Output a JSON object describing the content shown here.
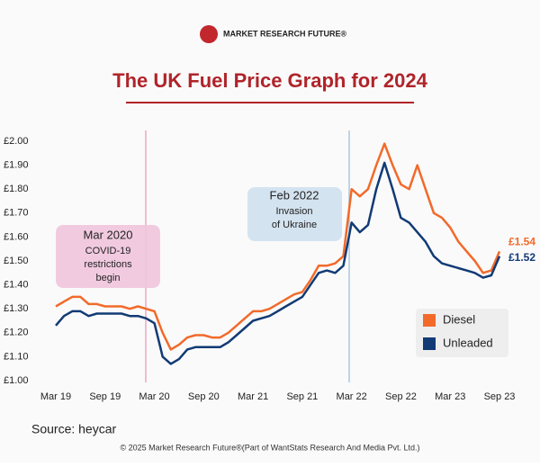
{
  "brand": "MARKET RESEARCH FUTURE®",
  "chart_data": {
    "type": "line",
    "title": "The UK Fuel Price Graph for 2024",
    "categories": [
      "Mar 19",
      null,
      null,
      null,
      null,
      null,
      "Sep 19",
      null,
      null,
      null,
      null,
      null,
      "Mar 20",
      null,
      null,
      null,
      null,
      null,
      "Sep 20",
      null,
      null,
      null,
      null,
      null,
      "Mar 21",
      null,
      null,
      null,
      null,
      null,
      "Sep 21",
      null,
      null,
      null,
      null,
      null,
      "Mar 22",
      null,
      null,
      null,
      null,
      null,
      "Sep 22",
      null,
      null,
      null,
      null,
      null,
      "Mar 23",
      null,
      null,
      null,
      null,
      null,
      "Sep 23"
    ],
    "series": [
      {
        "name": "Diesel",
        "color": "#f26a2a",
        "end_label": "£1.54",
        "values": [
          1.31,
          1.33,
          1.35,
          1.35,
          1.32,
          1.32,
          1.31,
          1.31,
          1.31,
          1.3,
          1.31,
          1.3,
          1.29,
          1.2,
          1.13,
          1.15,
          1.18,
          1.19,
          1.19,
          1.18,
          1.18,
          1.2,
          1.23,
          1.26,
          1.29,
          1.29,
          1.3,
          1.32,
          1.34,
          1.36,
          1.37,
          1.42,
          1.48,
          1.48,
          1.49,
          1.52,
          1.8,
          1.77,
          1.8,
          1.9,
          1.99,
          1.9,
          1.82,
          1.8,
          1.9,
          1.8,
          1.7,
          1.68,
          1.64,
          1.58,
          1.54,
          1.5,
          1.45,
          1.46,
          1.54
        ]
      },
      {
        "name": "Unleaded",
        "color": "#123a75",
        "end_label": "£1.52",
        "values": [
          1.23,
          1.27,
          1.29,
          1.29,
          1.27,
          1.28,
          1.28,
          1.28,
          1.28,
          1.27,
          1.27,
          1.26,
          1.24,
          1.1,
          1.07,
          1.09,
          1.13,
          1.14,
          1.14,
          1.14,
          1.14,
          1.16,
          1.19,
          1.22,
          1.25,
          1.26,
          1.27,
          1.29,
          1.31,
          1.33,
          1.35,
          1.4,
          1.45,
          1.46,
          1.45,
          1.48,
          1.66,
          1.62,
          1.65,
          1.8,
          1.91,
          1.8,
          1.68,
          1.66,
          1.62,
          1.58,
          1.52,
          1.49,
          1.48,
          1.47,
          1.46,
          1.45,
          1.43,
          1.44,
          1.52
        ]
      }
    ],
    "ylim": [
      1.0,
      2.0
    ],
    "yticks": [
      {
        "value": 1.0,
        "label": "£1.00"
      },
      {
        "value": 1.1,
        "label": "£1.10"
      },
      {
        "value": 1.2,
        "label": "£1.20"
      },
      {
        "value": 1.3,
        "label": "£1.30"
      },
      {
        "value": 1.4,
        "label": "£1.40"
      },
      {
        "value": 1.5,
        "label": "£1.50"
      },
      {
        "value": 1.6,
        "label": "£1.60"
      },
      {
        "value": 1.7,
        "label": "£1.70"
      },
      {
        "value": 1.8,
        "label": "£1.80"
      },
      {
        "value": 1.9,
        "label": "£1.90"
      },
      {
        "value": 2.0,
        "label": "£2.00"
      }
    ],
    "grid": false,
    "legend": "right",
    "annotations": [
      {
        "lines": [
          "Mar 2020",
          "COVID-19",
          "restrictions",
          "begin"
        ]
      },
      {
        "lines": [
          "Feb 2022",
          "Invasion",
          "of Ukraine"
        ]
      }
    ]
  },
  "source": "Source: heycar",
  "footer": "© 2025 Market Research Future®(Part of WantStats Research And Media Pvt. Ltd.)"
}
